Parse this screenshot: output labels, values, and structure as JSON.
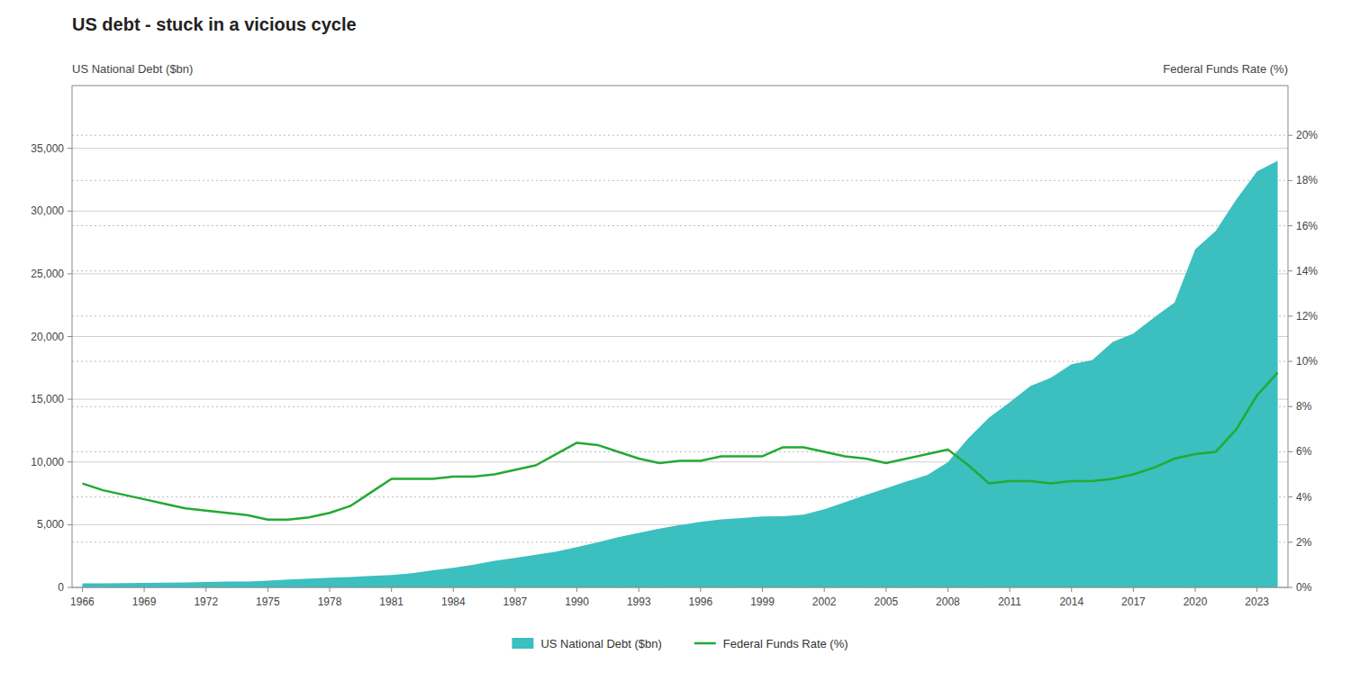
{
  "chart_data": {
    "type": "line",
    "title": "US debt - stuck in a vicious cycle",
    "ylabel": "US National Debt ($bn)",
    "y2label": "Federal Funds Rate (%)",
    "x": [
      1966,
      1967,
      1968,
      1969,
      1970,
      1971,
      1972,
      1973,
      1974,
      1975,
      1976,
      1977,
      1978,
      1979,
      1980,
      1981,
      1982,
      1983,
      1984,
      1985,
      1986,
      1987,
      1988,
      1989,
      1990,
      1991,
      1992,
      1993,
      1994,
      1995,
      1996,
      1997,
      1998,
      1999,
      2000,
      2001,
      2002,
      2003,
      2004,
      2005,
      2006,
      2007,
      2008,
      2009,
      2010,
      2011,
      2012,
      2013,
      2014,
      2015,
      2016,
      2017,
      2018,
      2019,
      2020,
      2021,
      2022,
      2023,
      2024
    ],
    "series": [
      {
        "name": "US National Debt ($bn)",
        "type": "area",
        "color": "#3bbfbf",
        "values": [
          320,
          326,
          348,
          354,
          371,
          398,
          427,
          458,
          475,
          533,
          620,
          699,
          771,
          827,
          908,
          994,
          1137,
          1371,
          1564,
          1817,
          2120,
          2346,
          2601,
          2857,
          3206,
          3598,
          4001,
          4351,
          4693,
          4973,
          5224,
          5413,
          5526,
          5656,
          5674,
          5807,
          6228,
          6783,
          7355,
          7905,
          8451,
          8950,
          9986,
          11898,
          13528,
          14764,
          16050,
          16719,
          17794,
          18120,
          19573,
          20242,
          21516,
          22719,
          26945,
          28428,
          30929,
          33167,
          34000
        ]
      },
      {
        "name": "Federal Funds Rate (%)",
        "type": "line",
        "color": "#22aa33",
        "axis": "y2",
        "values": [
          4.6,
          4.3,
          4.1,
          3.9,
          3.7,
          3.5,
          3.4,
          3.3,
          3.2,
          3.0,
          3.0,
          3.1,
          3.3,
          3.6,
          4.2,
          4.8,
          4.8,
          4.8,
          4.9,
          4.9,
          5.0,
          5.2,
          5.4,
          5.9,
          6.4,
          6.3,
          6.0,
          5.7,
          5.5,
          5.6,
          5.6,
          5.8,
          5.8,
          5.8,
          6.2,
          6.2,
          6.0,
          5.8,
          5.7,
          5.5,
          5.7,
          5.9,
          6.1,
          5.4,
          4.6,
          4.7,
          4.7,
          4.6,
          4.7,
          4.7,
          4.8,
          5.0,
          5.3,
          5.7,
          5.9,
          6.0,
          7.0,
          8.5,
          9.5
        ]
      }
    ],
    "xlim": [
      1965.5,
      2024.5
    ],
    "xticks": [
      1966,
      1969,
      1972,
      1975,
      1978,
      1981,
      1984,
      1987,
      1990,
      1993,
      1996,
      1999,
      2002,
      2005,
      2008,
      2011,
      2014,
      2017,
      2020,
      2023
    ],
    "ylim": [
      0,
      40000
    ],
    "yticks": [
      0,
      {
        "value": 5000,
        "label": "5,000"
      },
      {
        "value": 10000,
        "label": "10,000"
      },
      {
        "value": 15000,
        "label": "15,000"
      },
      {
        "value": 20000,
        "label": "20,000"
      },
      {
        "value": 25000,
        "label": "25,000"
      },
      {
        "value": 30000,
        "label": "30,000"
      },
      {
        "value": 35000,
        "label": "35,000"
      }
    ],
    "y2lim": [
      0,
      22.2
    ],
    "y2ticks": [
      {
        "value": 0,
        "label": "0%"
      },
      {
        "value": 2,
        "label": "2%"
      },
      {
        "value": 4,
        "label": "4%"
      },
      {
        "value": 6,
        "label": "6%"
      },
      {
        "value": 8,
        "label": "8%"
      },
      {
        "value": 10,
        "label": "10%"
      },
      {
        "value": 12,
        "label": "12%"
      },
      {
        "value": 14,
        "label": "14%"
      },
      {
        "value": 16,
        "label": "16%"
      },
      {
        "value": 18,
        "label": "18%"
      },
      {
        "value": 20,
        "label": "20%"
      }
    ],
    "grid": true,
    "legend": "bottom"
  }
}
